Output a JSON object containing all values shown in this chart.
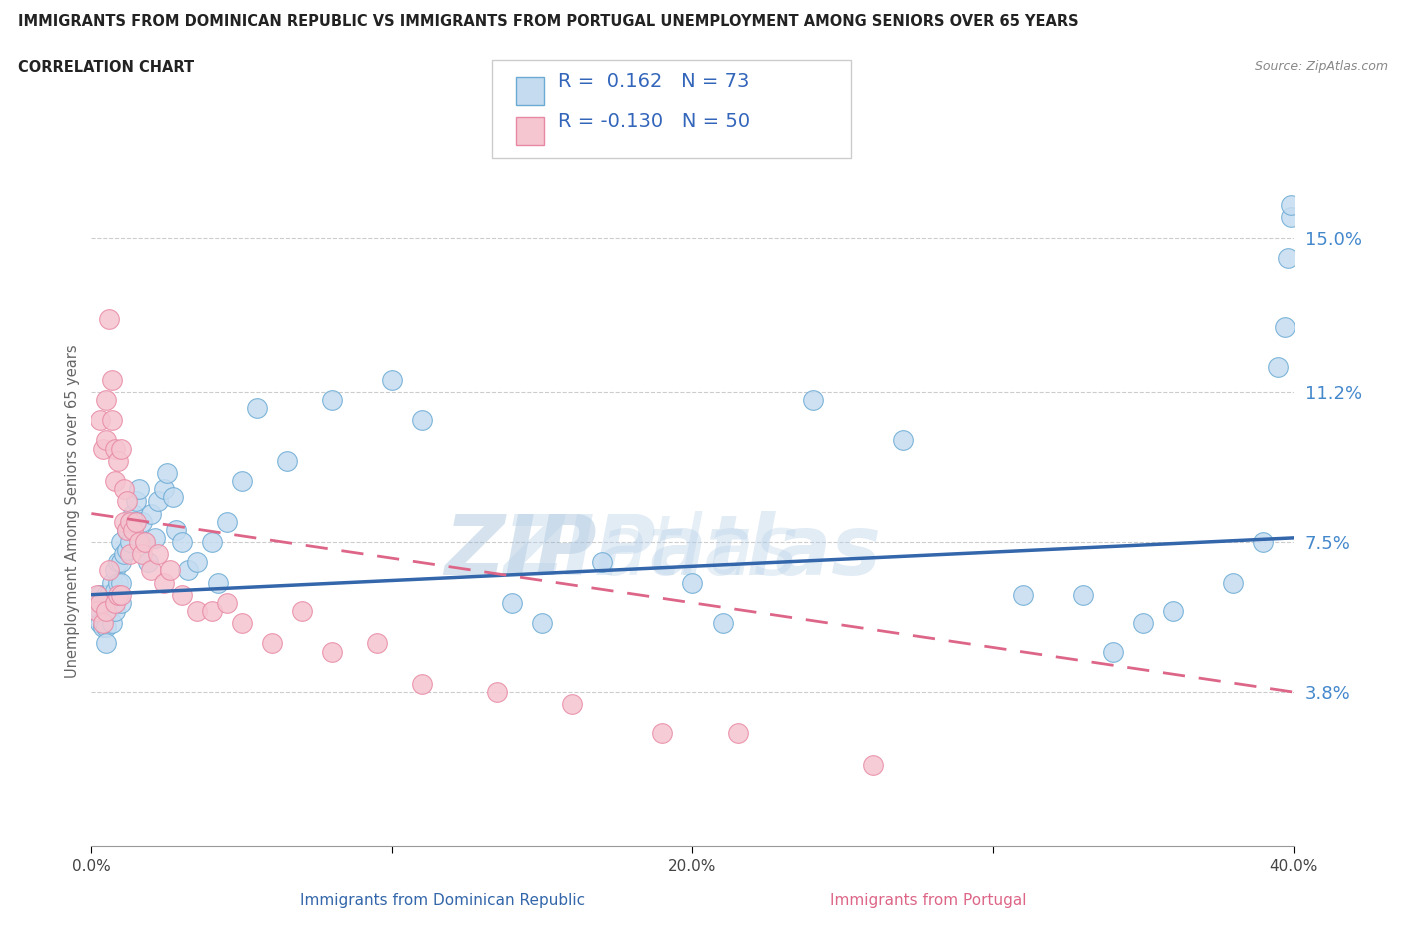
{
  "title_line1": "IMMIGRANTS FROM DOMINICAN REPUBLIC VS IMMIGRANTS FROM PORTUGAL UNEMPLOYMENT AMONG SENIORS OVER 65 YEARS",
  "title_line2": "CORRELATION CHART",
  "source_text": "Source: ZipAtlas.com",
  "xlabel_blue": "Immigrants from Dominican Republic",
  "xlabel_pink": "Immigrants from Portugal",
  "ylabel": "Unemployment Among Seniors over 65 years",
  "watermark": "ZIPatlas",
  "xlim": [
    0.0,
    0.4
  ],
  "ylim": [
    0.0,
    0.165
  ],
  "yticks": [
    0.038,
    0.075,
    0.112,
    0.15
  ],
  "ytick_labels": [
    "3.8%",
    "7.5%",
    "11.2%",
    "15.0%"
  ],
  "xticks": [
    0.0,
    0.1,
    0.2,
    0.3,
    0.4
  ],
  "xtick_labels": [
    "0.0%",
    "",
    "20.0%",
    "",
    "40.0%"
  ],
  "R_blue": 0.162,
  "N_blue": 73,
  "R_pink": -0.13,
  "N_pink": 50,
  "color_blue_fill": "#c5dcf0",
  "color_pink_fill": "#f5c5d0",
  "color_blue_edge": "#6aaad4",
  "color_pink_edge": "#e888a4",
  "color_legend_text": "#3366bb",
  "color_title": "#222222",
  "color_source": "#888888",
  "color_ylabel": "#666666",
  "color_ytick": "#4488cc",
  "color_xtick": "#444444",
  "color_gridline": "#cccccc",
  "color_blue_trend": "#3366aa",
  "color_pink_trend": "#dd6688",
  "blue_trend_x": [
    0.0,
    0.4
  ],
  "blue_trend_y": [
    0.062,
    0.076
  ],
  "pink_trend_x": [
    0.0,
    0.4
  ],
  "pink_trend_y": [
    0.082,
    0.038
  ],
  "blue_x": [
    0.003,
    0.003,
    0.003,
    0.004,
    0.004,
    0.005,
    0.005,
    0.005,
    0.005,
    0.006,
    0.006,
    0.007,
    0.007,
    0.007,
    0.008,
    0.008,
    0.008,
    0.009,
    0.009,
    0.01,
    0.01,
    0.01,
    0.01,
    0.011,
    0.012,
    0.012,
    0.013,
    0.013,
    0.014,
    0.015,
    0.015,
    0.016,
    0.017,
    0.018,
    0.019,
    0.02,
    0.021,
    0.022,
    0.024,
    0.025,
    0.027,
    0.028,
    0.03,
    0.032,
    0.035,
    0.04,
    0.042,
    0.045,
    0.05,
    0.055,
    0.065,
    0.08,
    0.1,
    0.11,
    0.14,
    0.15,
    0.17,
    0.2,
    0.21,
    0.24,
    0.27,
    0.31,
    0.33,
    0.34,
    0.35,
    0.36,
    0.38,
    0.39,
    0.395,
    0.397,
    0.398,
    0.399,
    0.399
  ],
  "blue_y": [
    0.062,
    0.058,
    0.055,
    0.06,
    0.054,
    0.062,
    0.058,
    0.054,
    0.05,
    0.062,
    0.058,
    0.065,
    0.06,
    0.055,
    0.068,
    0.063,
    0.058,
    0.07,
    0.065,
    0.075,
    0.07,
    0.065,
    0.06,
    0.072,
    0.078,
    0.073,
    0.08,
    0.075,
    0.082,
    0.085,
    0.08,
    0.088,
    0.08,
    0.075,
    0.07,
    0.082,
    0.076,
    0.085,
    0.088,
    0.092,
    0.086,
    0.078,
    0.075,
    0.068,
    0.07,
    0.075,
    0.065,
    0.08,
    0.09,
    0.108,
    0.095,
    0.11,
    0.115,
    0.105,
    0.06,
    0.055,
    0.07,
    0.065,
    0.055,
    0.11,
    0.1,
    0.062,
    0.062,
    0.048,
    0.055,
    0.058,
    0.065,
    0.075,
    0.118,
    0.128,
    0.145,
    0.155,
    0.158
  ],
  "pink_x": [
    0.002,
    0.002,
    0.003,
    0.003,
    0.004,
    0.004,
    0.005,
    0.005,
    0.005,
    0.006,
    0.006,
    0.007,
    0.007,
    0.008,
    0.008,
    0.008,
    0.009,
    0.009,
    0.01,
    0.01,
    0.011,
    0.011,
    0.012,
    0.012,
    0.013,
    0.013,
    0.014,
    0.015,
    0.016,
    0.017,
    0.018,
    0.02,
    0.022,
    0.024,
    0.026,
    0.03,
    0.035,
    0.04,
    0.045,
    0.05,
    0.06,
    0.07,
    0.08,
    0.095,
    0.11,
    0.135,
    0.16,
    0.19,
    0.215,
    0.26
  ],
  "pink_y": [
    0.062,
    0.058,
    0.105,
    0.06,
    0.098,
    0.055,
    0.11,
    0.1,
    0.058,
    0.13,
    0.068,
    0.115,
    0.105,
    0.098,
    0.09,
    0.06,
    0.095,
    0.062,
    0.098,
    0.062,
    0.088,
    0.08,
    0.085,
    0.078,
    0.08,
    0.072,
    0.078,
    0.08,
    0.075,
    0.072,
    0.075,
    0.068,
    0.072,
    0.065,
    0.068,
    0.062,
    0.058,
    0.058,
    0.06,
    0.055,
    0.05,
    0.058,
    0.048,
    0.05,
    0.04,
    0.038,
    0.035,
    0.028,
    0.028,
    0.02
  ]
}
